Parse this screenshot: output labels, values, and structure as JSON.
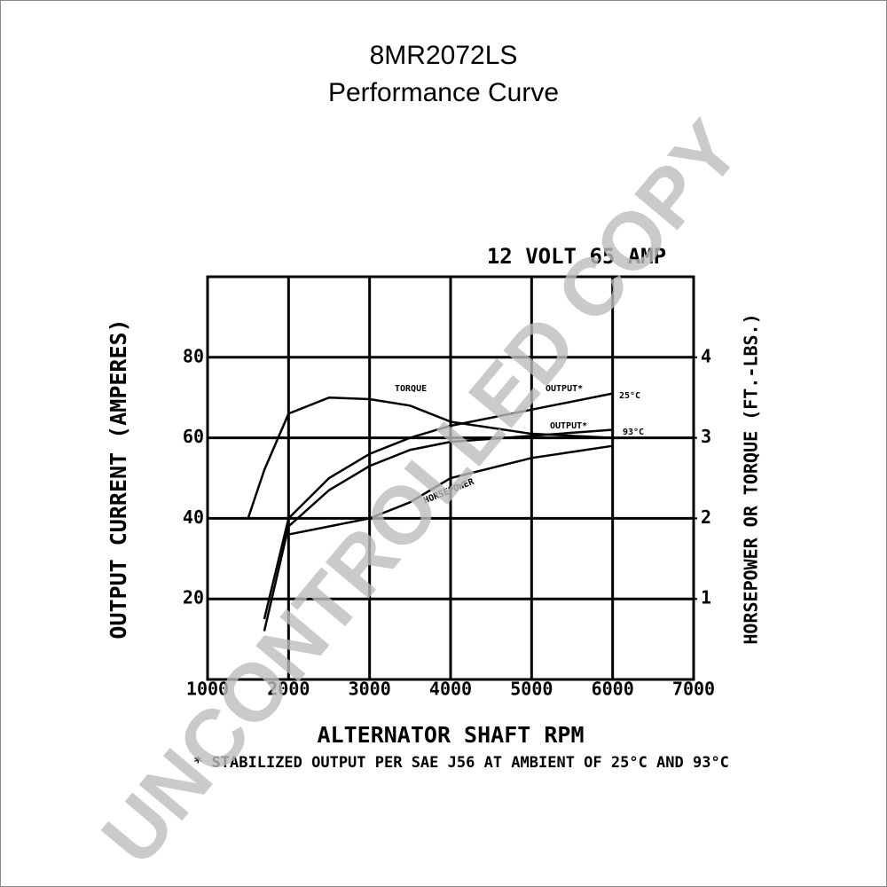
{
  "chart_data": {
    "type": "line",
    "title": "8MR2072LS",
    "subtitle": "Performance Curve",
    "heading": "12 VOLT 65 AMP",
    "xlabel": "ALTERNATOR SHAFT RPM",
    "ylabel": "OUTPUT CURRENT (AMPERES)",
    "y2label": "HORSEPOWER OR TORQUE (FT.-LBS.)",
    "footnote": "* STABILIZED OUTPUT PER SAE J56 AT AMBIENT OF 25°C AND 93°C",
    "watermark": "UNCONTROLLED COPY",
    "x": [
      1500,
      1700,
      2000,
      2500,
      3000,
      3500,
      4000,
      5000,
      6000
    ],
    "series": [
      {
        "name": "OUTPUT*",
        "ambient": "25°C",
        "color": "#000000",
        "values": [
          null,
          15,
          40,
          50,
          56,
          60,
          63,
          67,
          71
        ]
      },
      {
        "name": "OUTPUT*",
        "ambient": "93°C",
        "color": "#000000",
        "values": [
          null,
          12,
          38,
          47,
          53,
          57,
          59,
          60.5,
          62
        ]
      },
      {
        "name": "TORQUE",
        "color": "#000000",
        "axis": "y2",
        "values": [
          2.0,
          2.6,
          3.3,
          3.5,
          3.48,
          3.4,
          3.2,
          3.05,
          3.0
        ]
      },
      {
        "name": "HORSEPOWER",
        "color": "#000000",
        "axis": "y2",
        "values": [
          null,
          null,
          1.8,
          1.9,
          2.0,
          2.2,
          2.5,
          2.75,
          2.9
        ]
      }
    ],
    "xlim": [
      1000,
      7000
    ],
    "xticks": [
      1000,
      2000,
      3000,
      4000,
      5000,
      6000,
      7000
    ],
    "ylim": [
      0,
      100
    ],
    "yticks": [
      20,
      40,
      60,
      80
    ],
    "y2lim": [
      0,
      5
    ],
    "y2ticks": [
      1,
      2,
      3,
      4
    ],
    "grid": true
  }
}
